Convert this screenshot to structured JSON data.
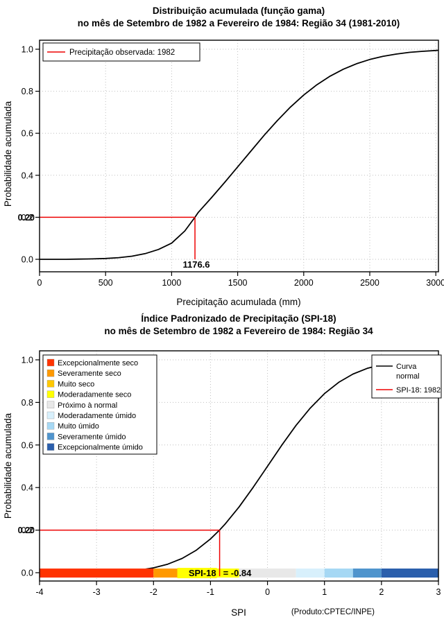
{
  "page": {
    "background": "#FFFFFF"
  },
  "chart_data": [
    {
      "type": "line",
      "name": "gamma-cumulative-distribution",
      "title_line1": "Distribuição acumulada (função gama)",
      "title_line2": "no mês de Setembro de 1982 a Fevereiro de 1984: Região 34 (1981-2010)",
      "xlabel": "Precipitação acumulada (mm)",
      "ylabel": "Probabilidade acumulada",
      "xlim": [
        0,
        3020
      ],
      "ylim": [
        0,
        1
      ],
      "grid": "dotted",
      "xticks": [
        {
          "v": 0,
          "label": "0"
        },
        {
          "v": 500,
          "label": "500"
        },
        {
          "v": 1000,
          "label": "1000"
        },
        {
          "v": 1500,
          "label": "1500"
        },
        {
          "v": 2000,
          "label": "2000"
        },
        {
          "v": 2500,
          "label": "2500"
        },
        {
          "v": 3000,
          "label": "3000"
        }
      ],
      "yticks": [
        {
          "v": 0,
          "label": "0.0"
        },
        {
          "v": 0.2,
          "label": "0.2"
        },
        {
          "v": 0.4,
          "label": "0.4"
        },
        {
          "v": 0.6,
          "label": "0.6"
        },
        {
          "v": 0.8,
          "label": "0.8"
        },
        {
          "v": 1,
          "label": "1.0"
        }
      ],
      "curve": {
        "name": "gamma-cdf-curve",
        "color": "#000000",
        "x": [
          0,
          100,
          200,
          300,
          400,
          500,
          600,
          700,
          800,
          900,
          1000,
          1100,
          1176.6,
          1200,
          1300,
          1400,
          1500,
          1600,
          1700,
          1800,
          1900,
          2000,
          2100,
          2200,
          2300,
          2400,
          2500,
          2600,
          2700,
          2800,
          2900,
          3000,
          3020
        ],
        "y": [
          0.0,
          0.0,
          0.0,
          0.001,
          0.002,
          0.004,
          0.008,
          0.015,
          0.027,
          0.047,
          0.077,
          0.135,
          0.2,
          0.222,
          0.292,
          0.365,
          0.44,
          0.515,
          0.59,
          0.66,
          0.725,
          0.782,
          0.831,
          0.872,
          0.905,
          0.931,
          0.951,
          0.966,
          0.977,
          0.985,
          0.99,
          0.994,
          0.995
        ]
      },
      "marker": {
        "x": 1176.6,
        "y": 0.2,
        "x_label": "1176.6",
        "y_label": "0.20",
        "color": "#EE0000"
      },
      "legend": {
        "position": "top-left",
        "items": [
          {
            "label": "Precipitação observada: 1982",
            "color": "#EE0000",
            "type": "line"
          }
        ]
      }
    },
    {
      "type": "line",
      "name": "spi-cumulative-distribution",
      "title_line1": "Índice Padronizado de Precipitação (SPI-18)",
      "title_line2": "no mês de Setembro de 1982 a Fevereiro de 1984: Região 34",
      "xlabel": "SPI",
      "ylabel": "Probabilidade acumulada",
      "footnote": "(Produto:CPTEC/INPE)",
      "xlim": [
        -4,
        3
      ],
      "ylim": [
        0,
        1
      ],
      "grid": "dotted",
      "xticks": [
        {
          "v": -4,
          "label": "-4"
        },
        {
          "v": -3,
          "label": "-3"
        },
        {
          "v": -2,
          "label": "-2"
        },
        {
          "v": -1,
          "label": "-1"
        },
        {
          "v": 0,
          "label": "0"
        },
        {
          "v": 1,
          "label": "1"
        },
        {
          "v": 2,
          "label": "2"
        },
        {
          "v": 3,
          "label": "3"
        }
      ],
      "yticks": [
        {
          "v": 0,
          "label": "0.0"
        },
        {
          "v": 0.2,
          "label": "0.2"
        },
        {
          "v": 0.4,
          "label": "0.4"
        },
        {
          "v": 0.6,
          "label": "0.6"
        },
        {
          "v": 0.8,
          "label": "0.8"
        },
        {
          "v": 1,
          "label": "1.0"
        }
      ],
      "curve": {
        "name": "normal-cdf-curve",
        "color": "#000000",
        "x": [
          -4,
          -3.75,
          -3.5,
          -3.25,
          -3,
          -2.75,
          -2.5,
          -2.25,
          -2,
          -1.75,
          -1.5,
          -1.25,
          -1,
          -0.84,
          -0.75,
          -0.5,
          -0.25,
          0,
          0.25,
          0.5,
          0.75,
          1,
          1.25,
          1.5,
          1.75,
          2,
          2.25,
          2.5,
          2.75,
          3
        ],
        "y": [
          0.0,
          0.0001,
          0.0002,
          0.0006,
          0.0013,
          0.003,
          0.0062,
          0.0122,
          0.0228,
          0.0401,
          0.0668,
          0.1056,
          0.1587,
          0.2005,
          0.2266,
          0.3085,
          0.4013,
          0.5,
          0.5987,
          0.6915,
          0.7734,
          0.8413,
          0.8944,
          0.9332,
          0.9599,
          0.9772,
          0.9878,
          0.9938,
          0.997,
          0.9987
        ]
      },
      "marker": {
        "x": -0.84,
        "y": 0.2,
        "y_label": "0.20",
        "color": "#EE0000",
        "label_highlight": "SPI-18",
        "label_rest": "= -0.84",
        "highlight_color": "#FFFF00"
      },
      "legend_right": {
        "position": "top-right",
        "items": [
          {
            "label_lines": [
              "Curva",
              "normal"
            ],
            "color": "#000000"
          },
          {
            "label_lines": [
              "SPI-18: 1982"
            ],
            "color": "#EE0000"
          }
        ]
      },
      "categories": [
        {
          "label": "Excepcionalmente seco",
          "color": "#FF3300",
          "from": -4,
          "to": -2
        },
        {
          "label": "Severamente seco",
          "color": "#FF9900",
          "from": -2,
          "to": -1.5
        },
        {
          "label": "Muito seco",
          "color": "#FFC800",
          "from": -1.5,
          "to": -1
        },
        {
          "label": "Moderadamente seco",
          "color": "#FFFF00",
          "from": -1,
          "to": -0.5
        },
        {
          "label": "Próximo à normal",
          "color": "#E8E8E8",
          "from": -0.5,
          "to": 0.5
        },
        {
          "label": "Moderadamente úmido",
          "color": "#D8F0FC",
          "from": 0.5,
          "to": 1
        },
        {
          "label": "Muito úmido",
          "color": "#A6D8F4",
          "from": 1,
          "to": 1.5
        },
        {
          "label": "Severamente úmido",
          "color": "#4F94CD",
          "from": 1.5,
          "to": 2
        },
        {
          "label": "Excepcionalmente úmido",
          "color": "#2B5FAC",
          "from": 2,
          "to": 3
        }
      ]
    }
  ]
}
